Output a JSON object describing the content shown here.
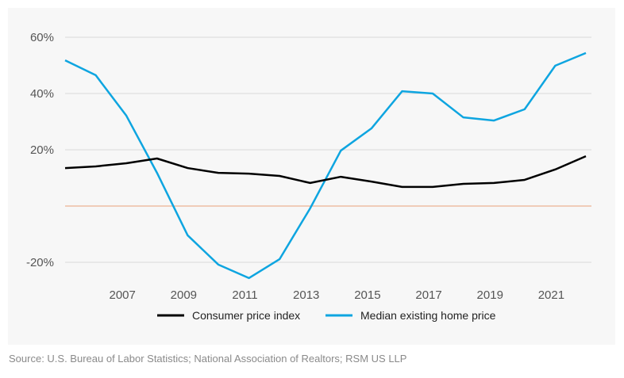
{
  "chart_data": {
    "type": "line",
    "title": "",
    "xlabel": "",
    "ylabel": "",
    "x": [
      2005,
      2006,
      2007,
      2008,
      2009,
      2010,
      2011,
      2012,
      2013,
      2014,
      2015,
      2016,
      2017,
      2018,
      2019,
      2020,
      2021,
      2022
    ],
    "xticks": [
      "2007",
      "2009",
      "2011",
      "2013",
      "2015",
      "2017",
      "2019",
      "2021"
    ],
    "yticks": [
      "60%",
      "40%",
      "20%",
      "-20%"
    ],
    "ylim": [
      -20,
      60
    ],
    "grid": true,
    "legend_position": "bottom",
    "series": [
      {
        "name": "Consumer price index",
        "color": "#000000",
        "values": [
          13.5,
          14.1,
          15.2,
          16.9,
          13.5,
          11.8,
          11.5,
          10.7,
          8.2,
          10.4,
          8.7,
          6.8,
          6.8,
          7.9,
          8.2,
          9.3,
          13.0,
          17.7
        ]
      },
      {
        "name": "Median existing home price",
        "color": "#0ea5e0",
        "values": [
          51.8,
          46.5,
          32.1,
          11.8,
          -10.4,
          -20.8,
          -25.6,
          -18.9,
          -0.8,
          19.7,
          27.6,
          40.8,
          40.0,
          31.5,
          30.4,
          34.4,
          49.9,
          54.4
        ]
      }
    ],
    "zero_line_color": "#e8a27a"
  },
  "source": "Source: U.S. Bureau of Labor Statistics; National Association of Realtors; RSM US LLP"
}
